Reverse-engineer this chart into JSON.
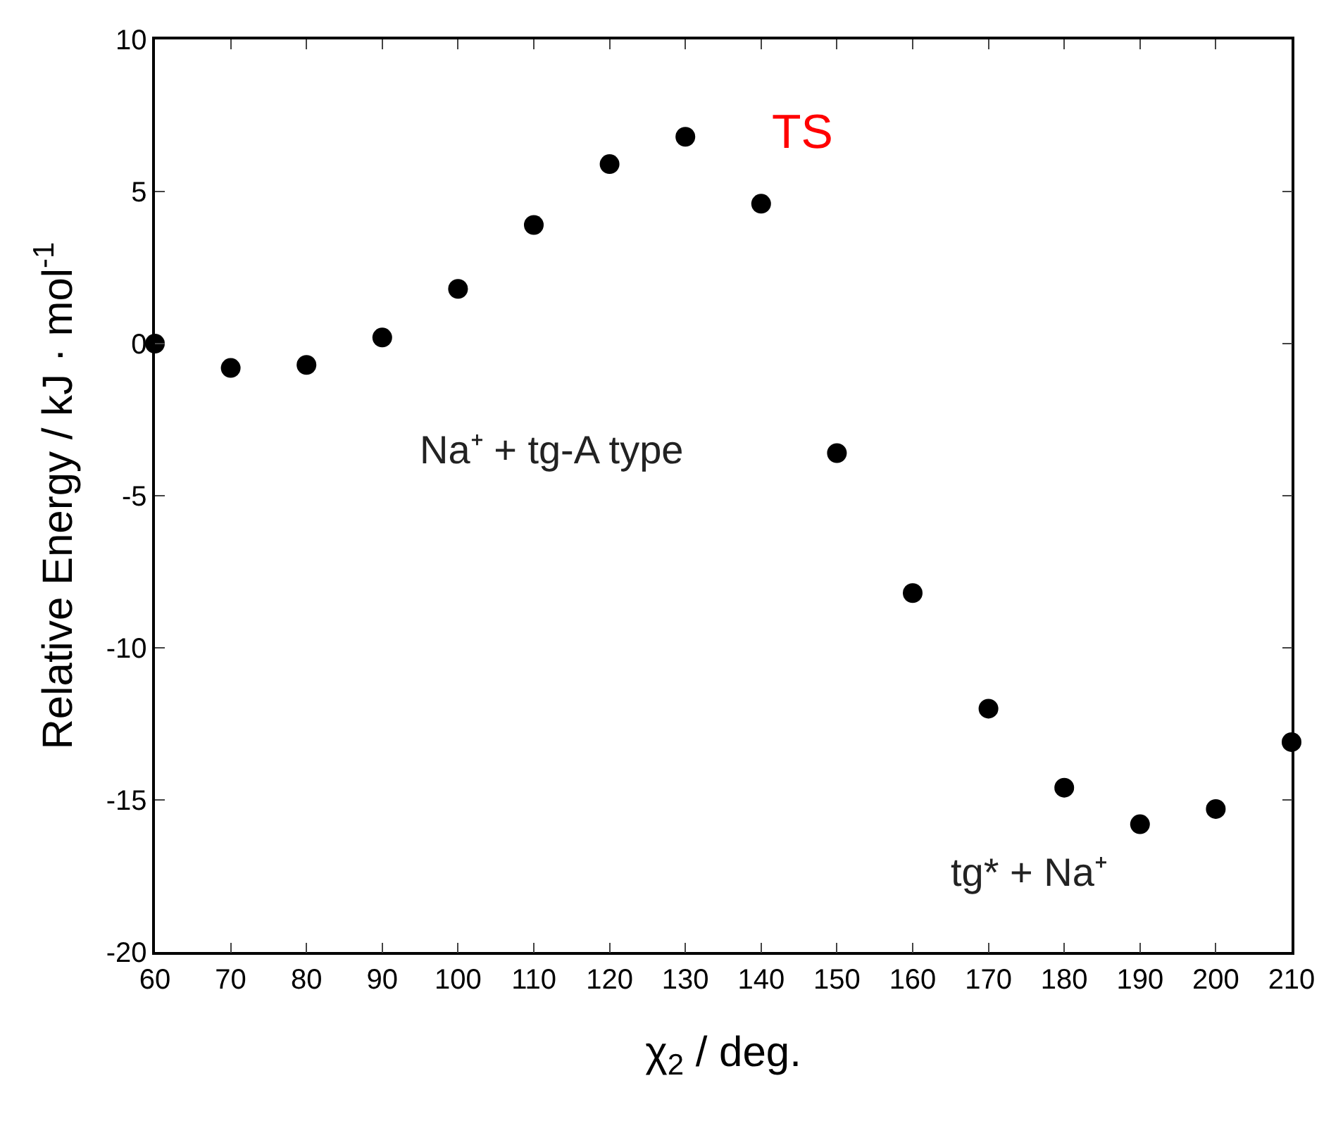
{
  "chart_data": {
    "type": "scatter",
    "xlabel": "χ$_{2}$ / deg.",
    "ylabel": "Relative Energy / kJ · mol$^{-1}$",
    "x": [
      60,
      70,
      80,
      90,
      100,
      110,
      120,
      130,
      140,
      150,
      160,
      170,
      180,
      190,
      200,
      210
    ],
    "series": [
      {
        "color": "#000000",
        "values": [
          0,
          -0.8,
          -0.7,
          0.2,
          1.8,
          3.9,
          5.9,
          6.8,
          4.6,
          -3.6,
          -8.2,
          -12,
          -14.6,
          -15.8,
          -15.3,
          -13.1
        ]
      }
    ],
    "xlim": [
      60,
      210
    ],
    "xticks": [
      60,
      70,
      80,
      90,
      100,
      110,
      120,
      130,
      140,
      150,
      160,
      170,
      180,
      190,
      200,
      210
    ],
    "ylim": [
      -20,
      10
    ],
    "yticks": [
      -20,
      -15,
      -10,
      -5,
      0,
      5,
      10
    ],
    "marker": "circle",
    "annotations": [
      "TS",
      "Na⁺ + tg-A type",
      "tg* + Na⁺"
    ]
  }
}
